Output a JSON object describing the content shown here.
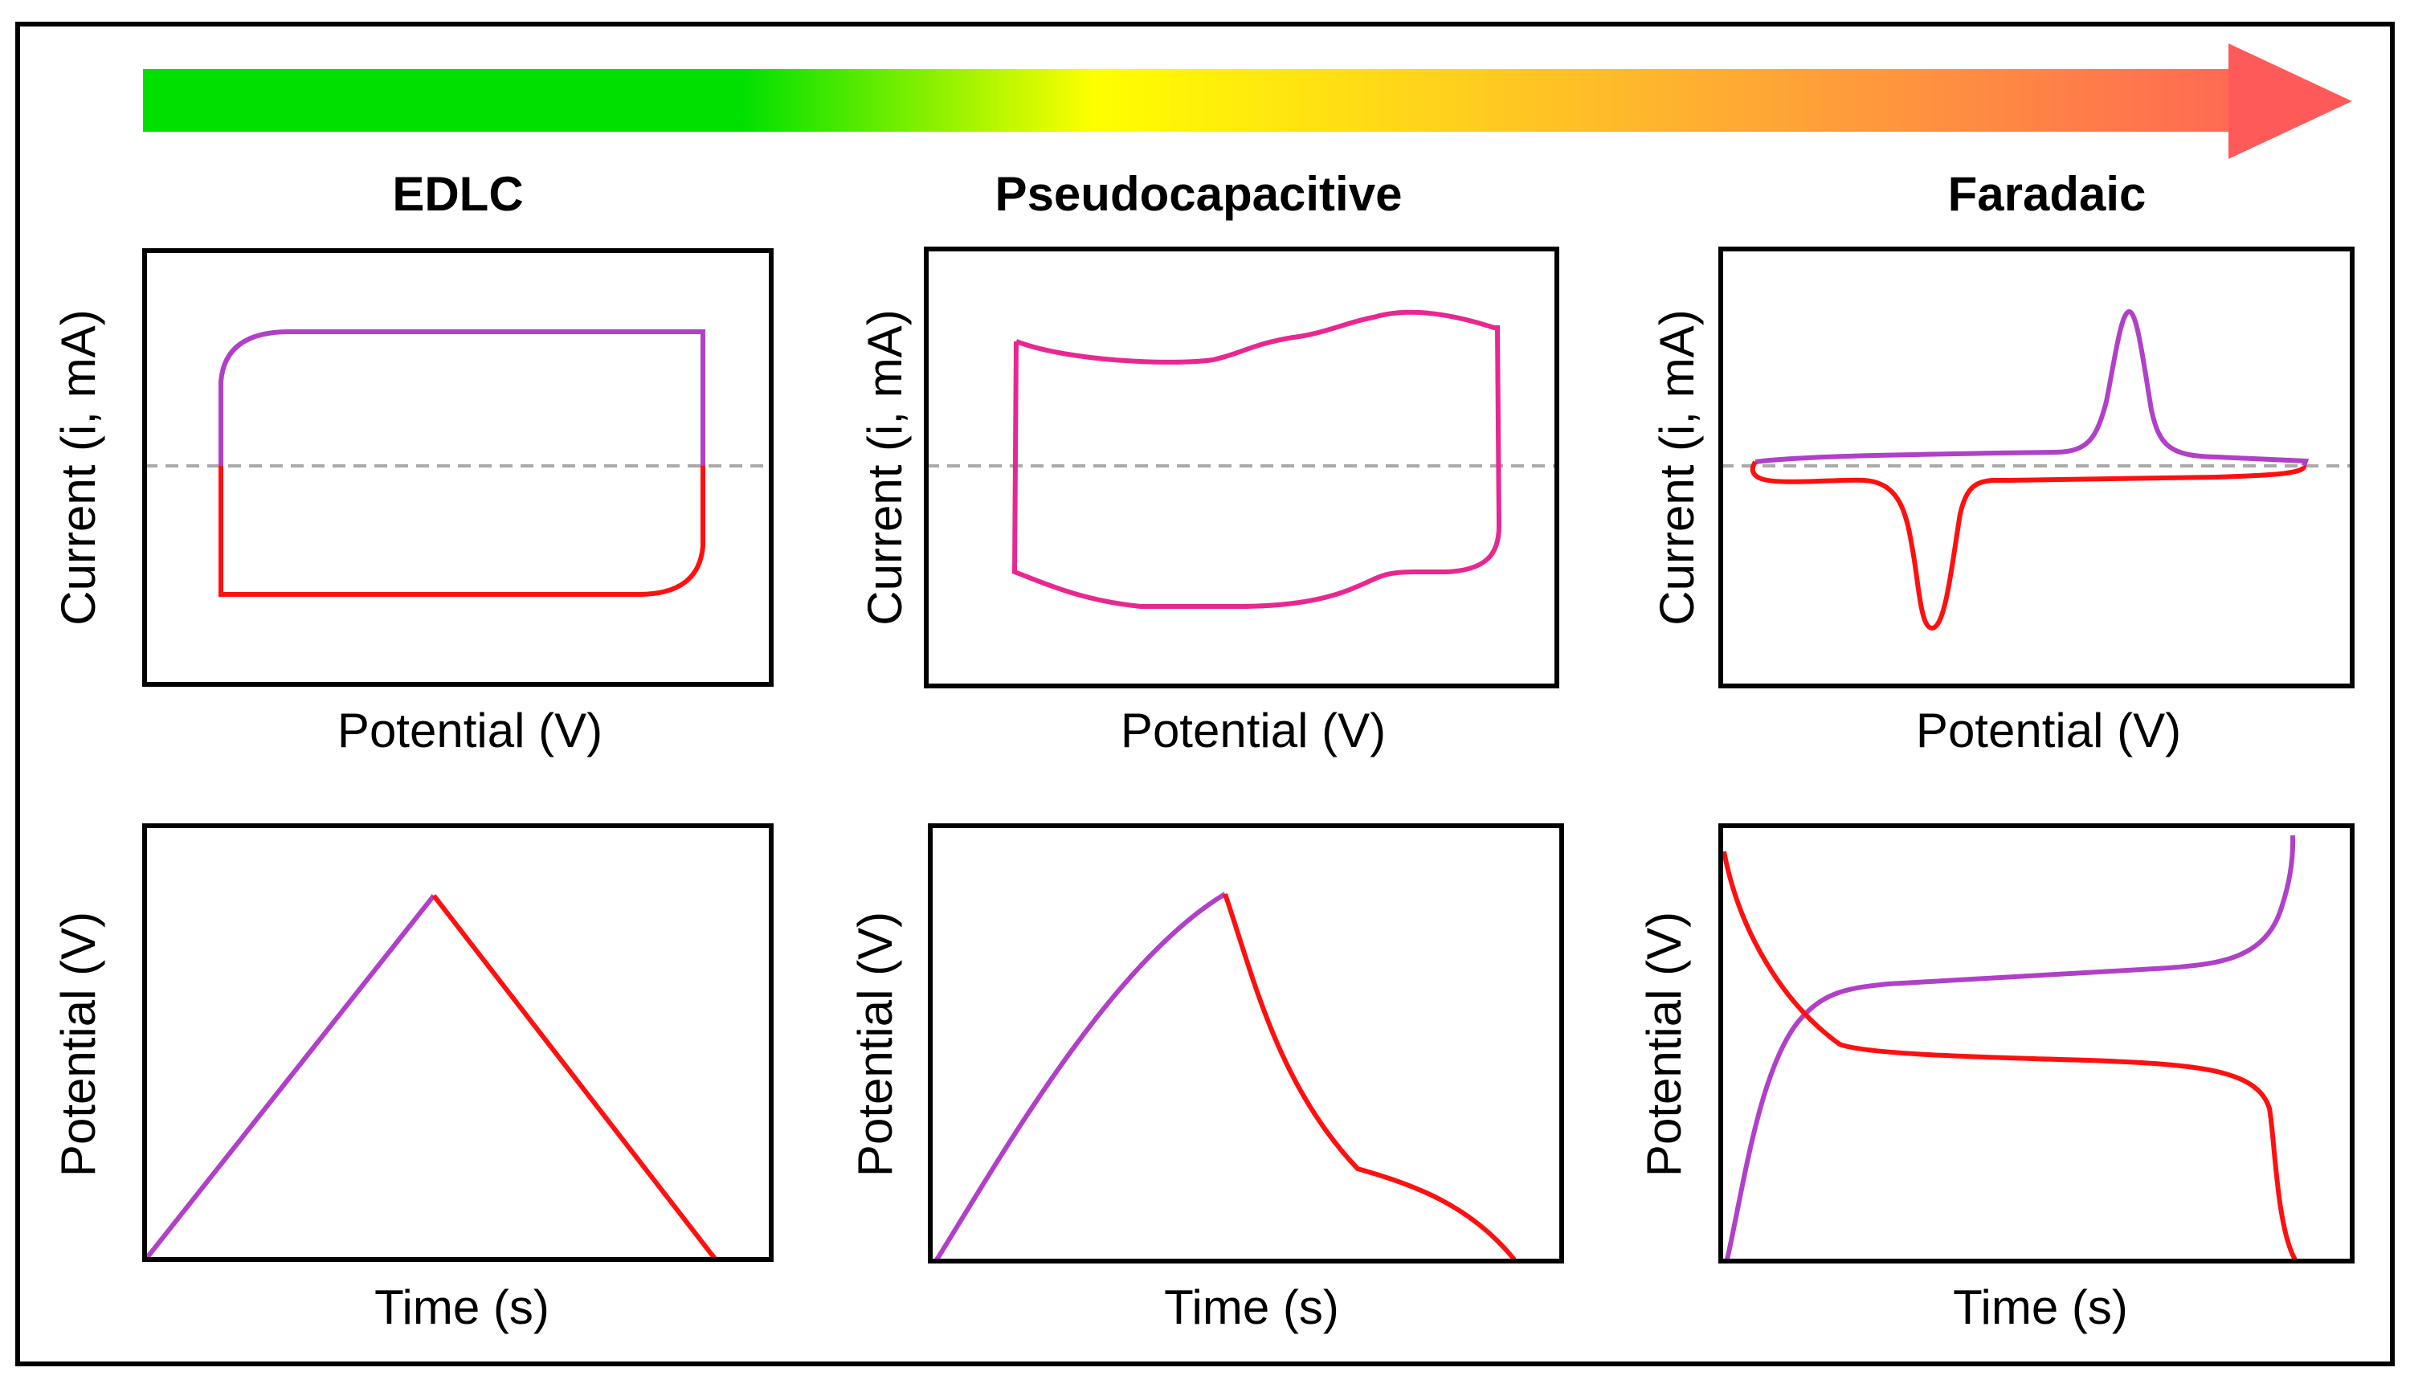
{
  "colors": {
    "green": "#00e000",
    "yellow": "#ffff00",
    "orange": "#ffb030",
    "red_arrow": "#ff5a5a",
    "charge": "#b040c8",
    "discharge": "#ff1010",
    "mixed": "#e82890",
    "baseline": "#aaaaaa"
  },
  "titles": {
    "edlc": "EDLC",
    "pseudo": "Pseudocapacitive",
    "faradaic": "Faradaic"
  },
  "axes": {
    "current_label": "Current (i, mA)",
    "potential_label": "Potential (V)",
    "time_label": "Time (s)"
  },
  "icons": {
    "arrow": "gradient-arrow-icon"
  }
}
